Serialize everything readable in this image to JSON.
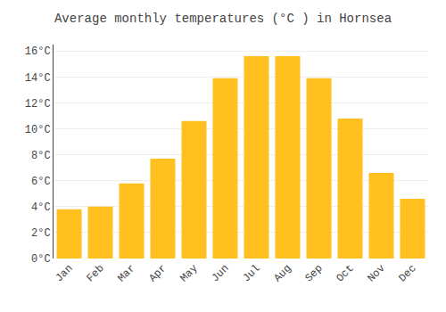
{
  "chart_data": {
    "type": "bar",
    "title": "Average monthly temperatures (°C ) in Hornsea",
    "categories": [
      "Jan",
      "Feb",
      "Mar",
      "Apr",
      "May",
      "Jun",
      "Jul",
      "Aug",
      "Sep",
      "Oct",
      "Nov",
      "Dec"
    ],
    "values": [
      3.8,
      4.0,
      5.8,
      7.7,
      10.6,
      13.9,
      15.6,
      15.6,
      13.9,
      10.8,
      6.6,
      4.6
    ],
    "color": "#FFC020",
    "ylim": [
      0,
      16.5
    ],
    "yticks": [
      {
        "value": 0,
        "label": "0°C"
      },
      {
        "value": 2,
        "label": "2°C"
      },
      {
        "value": 4,
        "label": "4°C"
      },
      {
        "value": 6,
        "label": "6°C"
      },
      {
        "value": 8,
        "label": "8°C"
      },
      {
        "value": 10,
        "label": "10°C"
      },
      {
        "value": 12,
        "label": "12°C"
      },
      {
        "value": 14,
        "label": "14°C"
      },
      {
        "value": 16,
        "label": "16°C"
      }
    ],
    "grid": true
  }
}
